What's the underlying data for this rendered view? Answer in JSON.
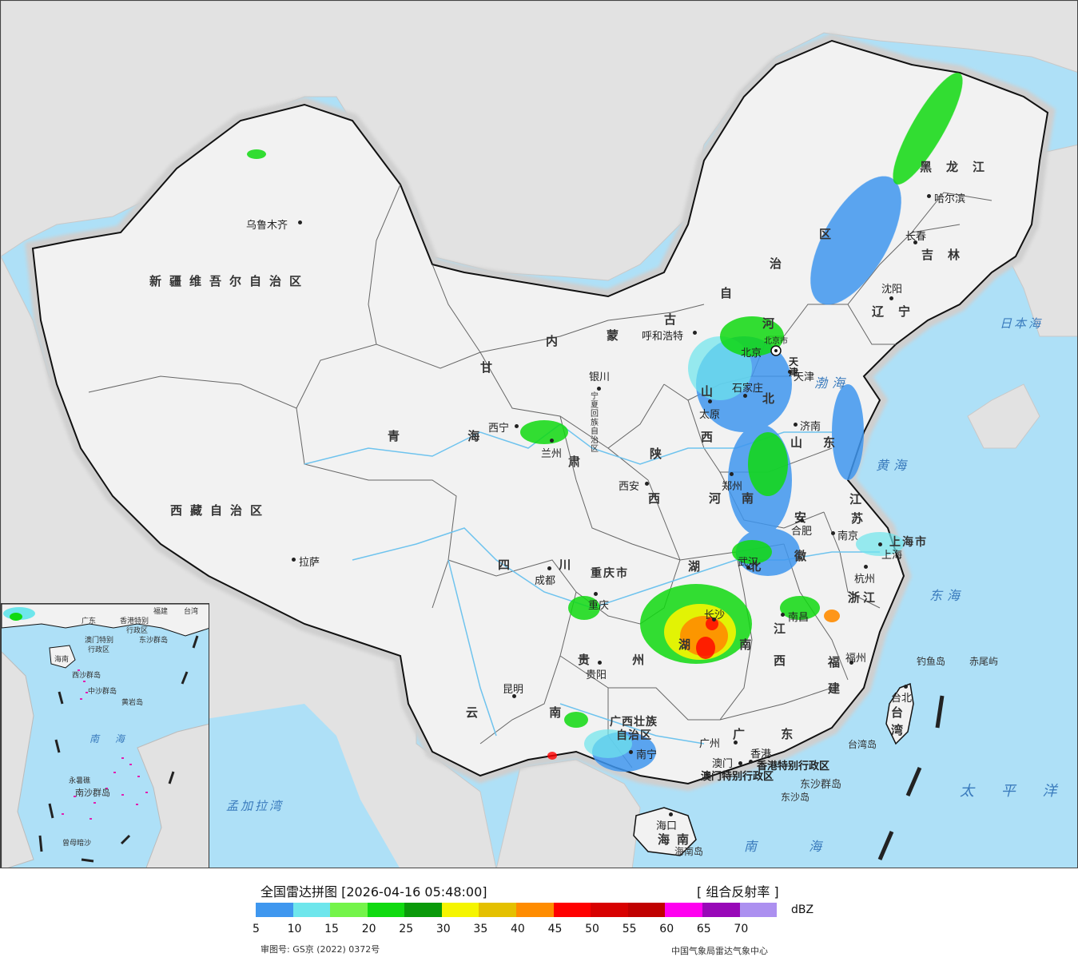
{
  "colors": {
    "ocean": "#aee0f7",
    "land_china": "#f3f3f3",
    "land_other": "#e0e0e0",
    "border": "#111111",
    "river": "#6ec3ee"
  },
  "map": {
    "provinces": [
      {
        "id": "xinjiang",
        "text": "新疆维吾尔自治区"
      },
      {
        "id": "xizang",
        "text": "西藏自治区"
      },
      {
        "id": "qinghai",
        "text": "青 海"
      },
      {
        "id": "gansu",
        "text": "甘"
      },
      {
        "id": "gansu2",
        "text": "肃"
      },
      {
        "id": "neimenggu1",
        "text": "内"
      },
      {
        "id": "neimenggu2",
        "text": "蒙"
      },
      {
        "id": "neimenggu3",
        "text": "古"
      },
      {
        "id": "neimenggu4",
        "text": "自"
      },
      {
        "id": "neimenggu5",
        "text": "治"
      },
      {
        "id": "neimenggu6",
        "text": "区"
      },
      {
        "id": "heilongjiang",
        "text": "黑龙江"
      },
      {
        "id": "jilin",
        "text": "吉林"
      },
      {
        "id": "liaoning",
        "text": "辽宁"
      },
      {
        "id": "ningxia",
        "text": "宁夏回族自治区"
      },
      {
        "id": "shaanxi1",
        "text": "陕"
      },
      {
        "id": "shaanxi2",
        "text": "西"
      },
      {
        "id": "shanxi1",
        "text": "山"
      },
      {
        "id": "shanxi2",
        "text": "西"
      },
      {
        "id": "hebei1",
        "text": "河"
      },
      {
        "id": "hebei2",
        "text": "北"
      },
      {
        "id": "shandong",
        "text": "山东"
      },
      {
        "id": "henan",
        "text": "河南"
      },
      {
        "id": "jiangsu1",
        "text": "江"
      },
      {
        "id": "jiangsu2",
        "text": "苏"
      },
      {
        "id": "anhui1",
        "text": "安"
      },
      {
        "id": "anhui2",
        "text": "徽"
      },
      {
        "id": "hubei",
        "text": "湖 北"
      },
      {
        "id": "sichuan",
        "text": "四 川"
      },
      {
        "id": "chongqing",
        "text": "重庆市"
      },
      {
        "id": "shanghai",
        "text": "上海市"
      },
      {
        "id": "zhejiang",
        "text": "浙江"
      },
      {
        "id": "jiangxi1",
        "text": "江"
      },
      {
        "id": "jiangxi2",
        "text": "西"
      },
      {
        "id": "hunan",
        "text": "湖 南"
      },
      {
        "id": "guizhou",
        "text": "贵 州"
      },
      {
        "id": "yunnan",
        "text": "云 南"
      },
      {
        "id": "guangxi1",
        "text": "广西壮族"
      },
      {
        "id": "guangxi2",
        "text": "自治区"
      },
      {
        "id": "guangdong",
        "text": "广 东"
      },
      {
        "id": "fujian1",
        "text": "福"
      },
      {
        "id": "fujian2",
        "text": "建"
      },
      {
        "id": "hainan1",
        "text": "海"
      },
      {
        "id": "hainan2",
        "text": "南"
      },
      {
        "id": "taiwan1",
        "text": "台"
      },
      {
        "id": "taiwan2",
        "text": "湾"
      },
      {
        "id": "tianjin",
        "text": "天津"
      },
      {
        "id": "beijing_lbl",
        "text": "北京市"
      },
      {
        "id": "hk",
        "text": "香港特别行政区"
      },
      {
        "id": "macau",
        "text": "澳门特别行政区"
      }
    ],
    "cities": [
      {
        "id": "urumqi",
        "text": "乌鲁木齐"
      },
      {
        "id": "lhasa",
        "text": "拉萨"
      },
      {
        "id": "xining",
        "text": "西宁"
      },
      {
        "id": "lanzhou",
        "text": "兰州"
      },
      {
        "id": "yinchuan",
        "text": "银川"
      },
      {
        "id": "hohhot",
        "text": "呼和浩特"
      },
      {
        "id": "harbin",
        "text": "哈尔滨"
      },
      {
        "id": "changchun",
        "text": "长春"
      },
      {
        "id": "shenyang",
        "text": "沈阳"
      },
      {
        "id": "beijing",
        "text": "北京"
      },
      {
        "id": "tianjin_c",
        "text": "天津"
      },
      {
        "id": "shijiazhuang",
        "text": "石家庄"
      },
      {
        "id": "taiyuan",
        "text": "太原"
      },
      {
        "id": "jinan",
        "text": "济南"
      },
      {
        "id": "zhengzhou",
        "text": "郑州"
      },
      {
        "id": "xian",
        "text": "西安"
      },
      {
        "id": "hefei",
        "text": "合肥"
      },
      {
        "id": "nanjing",
        "text": "南京"
      },
      {
        "id": "shanghai_c",
        "text": "上海"
      },
      {
        "id": "hangzhou",
        "text": "杭州"
      },
      {
        "id": "wuhan",
        "text": "武汉"
      },
      {
        "id": "chengdu",
        "text": "成都"
      },
      {
        "id": "chongqing_c",
        "text": "重庆"
      },
      {
        "id": "changsha",
        "text": "长沙"
      },
      {
        "id": "nanchang",
        "text": "南昌"
      },
      {
        "id": "fuzhou",
        "text": "福州"
      },
      {
        "id": "guiyang",
        "text": "贵阳"
      },
      {
        "id": "kunming",
        "text": "昆明"
      },
      {
        "id": "nanning",
        "text": "南宁"
      },
      {
        "id": "guangzhou",
        "text": "广州"
      },
      {
        "id": "hongkong_c",
        "text": "香港"
      },
      {
        "id": "macau_c",
        "text": "澳门"
      },
      {
        "id": "haikou",
        "text": "海口"
      },
      {
        "id": "taipei",
        "text": "台北"
      }
    ],
    "seas": [
      {
        "id": "bohai",
        "text": "渤海"
      },
      {
        "id": "huanghai",
        "text": "黄海"
      },
      {
        "id": "donghai",
        "text": "东海"
      },
      {
        "id": "nanhai",
        "text": "南 海"
      },
      {
        "id": "taipingyang",
        "text": "太 平 洋"
      },
      {
        "id": "ribenhai",
        "text": "日本海"
      },
      {
        "id": "mengjialawan",
        "text": "孟加拉湾"
      }
    ],
    "islands": [
      {
        "id": "diaoyu",
        "text": "钓鱼岛"
      },
      {
        "id": "chiwei",
        "text": "赤尾屿"
      },
      {
        "id": "taiwandao",
        "text": "台湾岛"
      },
      {
        "id": "dongsha",
        "text": "东沙群岛"
      },
      {
        "id": "dongshadao",
        "text": "东沙岛"
      },
      {
        "id": "hainandao",
        "text": "海南岛"
      }
    ]
  },
  "inset": {
    "labels": [
      "广东",
      "福建",
      "台湾",
      "香港特别",
      "行政区",
      "澳门特别",
      "行政区",
      "东沙群岛",
      "海南",
      "西沙群岛",
      "中沙群岛",
      "黄岩岛",
      "南 海",
      "南沙群岛",
      "永暑礁",
      "曾母暗沙"
    ]
  },
  "legend": {
    "title": "全国雷达拼图 [2026-04-16 05:48:00]",
    "product": "[ 组合反射率 ]",
    "unit": "dBZ",
    "colors": [
      "#3f97ef",
      "#6ee6ec",
      "#74f44a",
      "#10da10",
      "#0a9a0a",
      "#f5f500",
      "#e4c000",
      "#ff8c00",
      "#ff0000",
      "#d80000",
      "#c00000",
      "#ff00f0",
      "#9808b8",
      "#ac90f0"
    ],
    "ticks": [
      "5",
      "10",
      "15",
      "20",
      "25",
      "30",
      "35",
      "40",
      "45",
      "50",
      "55",
      "60",
      "65",
      "70"
    ],
    "approval": "审图号: GS京 (2022) 0372号",
    "source": "中国气象局雷达气象中心"
  }
}
